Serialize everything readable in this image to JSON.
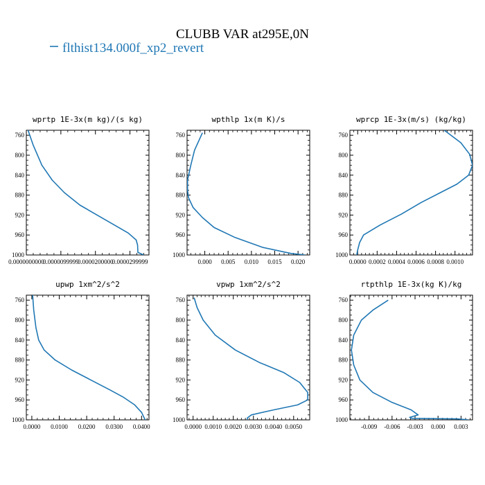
{
  "figure": {
    "title": "CLUBB VAR at295E,0N",
    "legend_label": "flthist134.000f_xp2_revert",
    "line_color": "#1f77b4"
  },
  "chart_data": [
    {
      "type": "line",
      "title": "wprtp  1E-3x(m kg)/(s kg)",
      "ylim": [
        1000,
        750
      ],
      "yticks": [
        760,
        800,
        840,
        880,
        920,
        960,
        1000
      ],
      "xlim": [
        0.0,
        3.55e-05
      ],
      "xticks": [
        0.0,
        1e-05,
        2e-05,
        3e-05
      ],
      "xtick_labels": [
        "0.0000000000",
        "0.0000099999",
        "0.0000200000",
        "0.0000299999"
      ],
      "series": [
        {
          "x": [
            5e-07,
            2e-06,
            4.5e-06,
            7.5e-06,
            1.1e-05,
            1.55e-05,
            2.05e-05,
            2.55e-05,
            2.95e-05,
            3.18e-05,
            3.22e-05,
            3.23e-05,
            3.4e-05
          ],
          "y": [
            750,
            780,
            820,
            850,
            875,
            900,
            920,
            940,
            956,
            970,
            980,
            995,
            1000
          ]
        }
      ]
    },
    {
      "type": "line",
      "title": "wpthlp  1x(m K)/s",
      "ylim": [
        1000,
        750
      ],
      "yticks": [
        760,
        800,
        840,
        880,
        920,
        960,
        1000
      ],
      "xlim": [
        -0.0038,
        0.0225
      ],
      "xticks": [
        0.0,
        0.005,
        0.01,
        0.015,
        0.02
      ],
      "xtick_labels": [
        "0.000",
        "0.005",
        "0.010",
        "0.015",
        "0.020"
      ],
      "series": [
        {
          "x": [
            -0.0005,
            -0.0022,
            -0.003,
            -0.0037,
            -0.0037,
            -0.0035,
            -0.0025,
            -0.0005,
            0.002,
            0.0065,
            0.0125,
            0.0185,
            0.0215
          ],
          "y": [
            755,
            790,
            820,
            850,
            870,
            885,
            905,
            925,
            945,
            965,
            985,
            997,
            1000
          ]
        }
      ]
    },
    {
      "type": "line",
      "title": "wprcp  1E-3x(m/s) (kg/kg)",
      "ylim": [
        1000,
        750
      ],
      "yticks": [
        760,
        800,
        840,
        880,
        920,
        960,
        1000
      ],
      "xlim": [
        -8e-05,
        0.00118
      ],
      "xticks": [
        0.0,
        0.0002,
        0.0004,
        0.0006,
        0.0008,
        0.001
      ],
      "xtick_labels": [
        "0.0000",
        "0.0002",
        "0.0004",
        "0.0006",
        "0.0008",
        "0.0010"
      ],
      "series": [
        {
          "x": [
            0.00089,
            0.00106,
            0.00115,
            0.00118,
            0.00114,
            0.00102,
            0.00085,
            0.00065,
            0.00045,
            0.00023,
            6e-05,
            2e-05,
            0.0,
            -1e-05
          ],
          "y": [
            750,
            775,
            798,
            820,
            840,
            858,
            875,
            895,
            918,
            940,
            960,
            975,
            990,
            1000
          ]
        }
      ]
    },
    {
      "type": "line",
      "title": "upwp  1xm^2/s^2",
      "ylim": [
        1000,
        750
      ],
      "yticks": [
        760,
        800,
        840,
        880,
        920,
        960,
        1000
      ],
      "xlim": [
        -0.002,
        0.0427
      ],
      "xticks": [
        0.0,
        0.01,
        0.02,
        0.03,
        0.04
      ],
      "xtick_labels": [
        "0.0000",
        "0.0100",
        "0.0200",
        "0.0300",
        "0.0400"
      ],
      "series": [
        {
          "x": [
            0.0003,
            0.0007,
            0.0015,
            0.0025,
            0.0045,
            0.0085,
            0.0145,
            0.0215,
            0.0285,
            0.0335,
            0.0375,
            0.04,
            0.0413
          ],
          "y": [
            750,
            780,
            815,
            840,
            860,
            880,
            900,
            920,
            940,
            955,
            970,
            985,
            1000
          ]
        }
      ]
    },
    {
      "type": "line",
      "title": "vpwp  1xm^2/s^2",
      "ylim": [
        1000,
        750
      ],
      "yticks": [
        760,
        800,
        840,
        880,
        920,
        960,
        1000
      ],
      "xlim": [
        -0.0003,
        0.0058
      ],
      "xticks": [
        0.0,
        0.001,
        0.002,
        0.003,
        0.004,
        0.005
      ],
      "xtick_labels": [
        "0.0000",
        "0.0010",
        "0.0020",
        "0.0030",
        "0.0040",
        "0.0050"
      ],
      "series": [
        {
          "x": [
            5e-05,
            0.0002,
            0.0005,
            0.0011,
            0.0021,
            0.0033,
            0.0045,
            0.0053,
            0.0057,
            0.0057,
            0.0052,
            0.004,
            0.0029,
            0.0027,
            0.0027
          ],
          "y": [
            755,
            775,
            800,
            830,
            860,
            885,
            905,
            925,
            945,
            960,
            970,
            980,
            990,
            996,
            1000
          ]
        }
      ]
    },
    {
      "type": "line",
      "title": "rtpthlp  1E-3x(kg K)/kg",
      "ylim": [
        1000,
        750
      ],
      "yticks": [
        760,
        800,
        840,
        880,
        920,
        960,
        1000
      ],
      "xlim": [
        -0.0115,
        0.0045
      ],
      "xticks": [
        -0.009,
        -0.006,
        -0.003,
        0.0,
        0.003
      ],
      "xtick_labels": [
        "-0.009",
        "-0.006",
        "-0.003",
        "0.000",
        "0.003"
      ],
      "series": [
        {
          "x": [
            -0.0065,
            -0.0085,
            -0.01,
            -0.011,
            -0.0113,
            -0.011,
            -0.0102,
            -0.0085,
            -0.006,
            -0.0035,
            -0.0026,
            -0.0037,
            -0.0034,
            0.0025,
            0.004
          ],
          "y": [
            760,
            780,
            800,
            830,
            860,
            890,
            920,
            945,
            965,
            980,
            990,
            995,
            997,
            998,
            1000
          ]
        }
      ]
    }
  ]
}
